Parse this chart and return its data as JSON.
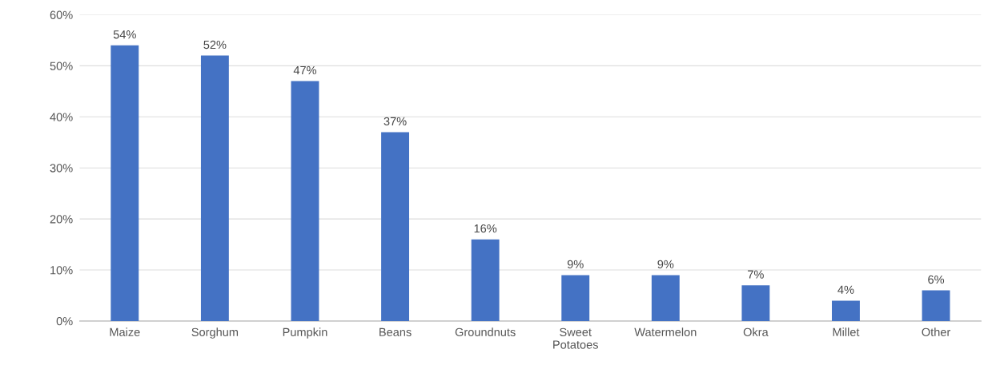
{
  "chart_data": {
    "type": "bar",
    "categories": [
      "Maize",
      "Sorghum",
      "Pumpkin",
      "Beans",
      "Groundnuts",
      "Sweet Potatoes",
      "Watermelon",
      "Okra",
      "Millet",
      "Other"
    ],
    "values": [
      54,
      52,
      47,
      37,
      16,
      9,
      9,
      7,
      4,
      6
    ],
    "value_labels": [
      "54%",
      "52%",
      "47%",
      "37%",
      "16%",
      "9%",
      "9%",
      "7%",
      "4%",
      "6%"
    ],
    "color": "#4472c4",
    "ylim": [
      0,
      60
    ],
    "yticks": [
      {
        "value": 0,
        "label": "0%"
      },
      {
        "value": 10,
        "label": "10%"
      },
      {
        "value": 20,
        "label": "20%"
      },
      {
        "value": 30,
        "label": "30%"
      },
      {
        "value": 40,
        "label": "40%"
      },
      {
        "value": 50,
        "label": "50%"
      },
      {
        "value": 60,
        "label": "60%"
      }
    ],
    "grid": "y",
    "legend": false
  }
}
